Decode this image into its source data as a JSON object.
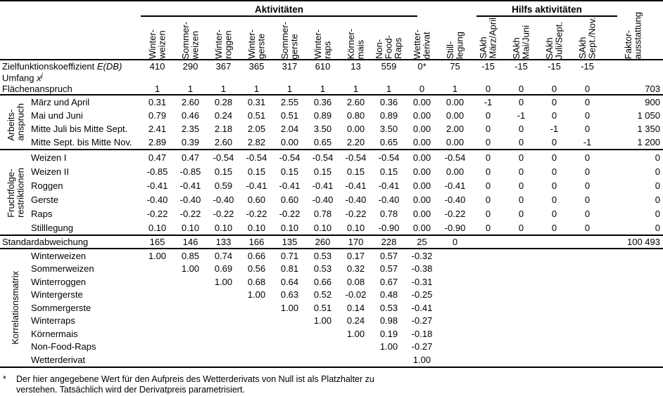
{
  "table": {
    "group_headers": {
      "activities": "Aktivitäten",
      "aux": "Hilfs aktivitäten"
    },
    "columns": [
      "Winter-\nweizen",
      "Sommer-\nweizen",
      "Winter-\nroggen",
      "Winter-\ngerste",
      "Sommer-\ngerste",
      "Winter-\nraps",
      "Körner-\nmais",
      "Non-Food-\nRaps",
      "Wetter-\nderivat",
      "Still-\nlegung",
      "SAkh\nMärz/April",
      "SAkh\nMai/Juni",
      "SAkh\nJuli/Sept.",
      "SAkh\nSept./Nov."
    ],
    "faktor_column": "Faktor-\nausstattung",
    "blocks": [
      {
        "group": "",
        "border_top": false,
        "border_bottom": false,
        "rows": [
          {
            "label": "Zielfunktionskoeffizient ",
            "label_italic": "E(DB)",
            "cells": [
              "410",
              "290",
              "367",
              "365",
              "317",
              "610",
              "13",
              "559",
              "0*",
              "75",
              "-15",
              "-15",
              "-15",
              "-15"
            ],
            "faktor": ""
          },
          {
            "label": "Umfang ",
            "label_italic": "x",
            "label_sup": "j",
            "cells": [
              "",
              "",
              "",
              "",
              "",
              "",
              "",
              "",
              "",
              "",
              "",
              "",
              "",
              ""
            ],
            "faktor": ""
          },
          {
            "label": "Flächenanspruch",
            "cells": [
              "1",
              "1",
              "1",
              "1",
              "1",
              "1",
              "1",
              "1",
              "0",
              "1",
              "0",
              "0",
              "0",
              "0"
            ],
            "faktor": "703"
          }
        ]
      },
      {
        "group": "Arbeits-\nanspruch",
        "border_top": true,
        "border_bottom": false,
        "rows": [
          {
            "label": "März und April",
            "cells": [
              "0.31",
              "2.60",
              "0.28",
              "0.31",
              "2.55",
              "0.36",
              "2.60",
              "0.36",
              "0.00",
              "0.00",
              "-1",
              "0",
              "0",
              "0"
            ],
            "faktor": "900"
          },
          {
            "label": "Mai und Juni",
            "cells": [
              "0.79",
              "0.46",
              "0.24",
              "0.51",
              "0.51",
              "0.89",
              "0.80",
              "0.89",
              "0.00",
              "0.00",
              "0",
              "-1",
              "0",
              "0"
            ],
            "faktor": "1 050"
          },
          {
            "label": "Mitte Juli bis Mitte Sept.",
            "cells": [
              "2.41",
              "2.35",
              "2.18",
              "2.05",
              "2.04",
              "3.50",
              "0.00",
              "3.50",
              "0.00",
              "2.00",
              "0",
              "0",
              "-1",
              "0"
            ],
            "faktor": "1 350"
          },
          {
            "label": "Mitte Sept. bis Mitte Nov.",
            "cells": [
              "2.89",
              "0.39",
              "2.60",
              "2.82",
              "0.00",
              "0.65",
              "2.20",
              "0.65",
              "0.00",
              "0.00",
              "0",
              "0",
              "0",
              "-1"
            ],
            "faktor": "1 200"
          }
        ]
      },
      {
        "group": "Fruchtfolge-\nrestriktionen",
        "border_top": true,
        "border_bottom": false,
        "rows": [
          {
            "label": "Weizen I",
            "cells": [
              "0.47",
              "0.47",
              "-0.54",
              "-0.54",
              "-0.54",
              "-0.54",
              "-0.54",
              "-0.54",
              "0.00",
              "-0.54",
              "0",
              "0",
              "0",
              "0"
            ],
            "faktor": "0"
          },
          {
            "label": "Weizen II",
            "cells": [
              "-0.85",
              "-0.85",
              "0.15",
              "0.15",
              "0.15",
              "0.15",
              "0.15",
              "0.15",
              "0.00",
              "0.00",
              "0",
              "0",
              "0",
              "0"
            ],
            "faktor": "0"
          },
          {
            "label": "Roggen",
            "cells": [
              "-0.41",
              "-0.41",
              "0.59",
              "-0.41",
              "-0.41",
              "-0.41",
              "-0.41",
              "-0.41",
              "0.00",
              "-0.41",
              "0",
              "0",
              "0",
              "0"
            ],
            "faktor": "0"
          },
          {
            "label": "Gerste",
            "cells": [
              "-0.40",
              "-0.40",
              "-0.40",
              "0.60",
              "0.60",
              "-0.40",
              "-0.40",
              "-0.40",
              "0.00",
              "-0.40",
              "0",
              "0",
              "0",
              "0"
            ],
            "faktor": "0"
          },
          {
            "label": "Raps",
            "cells": [
              "-0.22",
              "-0.22",
              "-0.22",
              "-0.22",
              "-0.22",
              "0.78",
              "-0.22",
              "0.78",
              "0.00",
              "-0.22",
              "0",
              "0",
              "0",
              "0"
            ],
            "faktor": "0"
          },
          {
            "label": "Stilllegung",
            "cells": [
              "0.10",
              "0.10",
              "0.10",
              "0.10",
              "0.10",
              "0.10",
              "0.10",
              "-0.90",
              "0.00",
              "-0.90",
              "0",
              "0",
              "0",
              "0"
            ],
            "faktor": "0"
          }
        ]
      },
      {
        "group": "",
        "border_top": true,
        "border_bottom": false,
        "rows": [
          {
            "label": "Standardabweichung",
            "cells": [
              "165",
              "146",
              "133",
              "166",
              "135",
              "260",
              "170",
              "228",
              "25",
              "0",
              "",
              "",
              "",
              ""
            ],
            "faktor": "100 493"
          }
        ]
      },
      {
        "group": "Korrelationsmatrix",
        "border_top": true,
        "border_bottom": true,
        "rows": [
          {
            "label": "Winterweizen",
            "cells": [
              "1.00",
              "0.85",
              "0.74",
              "0.66",
              "0.71",
              "0.53",
              "0.17",
              "0.57",
              "-0.32",
              "",
              "",
              "",
              "",
              ""
            ],
            "faktor": ""
          },
          {
            "label": "Sommerweizen",
            "cells": [
              "",
              "1.00",
              "0.69",
              "0.56",
              "0.81",
              "0.53",
              "0.32",
              "0.57",
              "-0.38",
              "",
              "",
              "",
              "",
              ""
            ],
            "faktor": ""
          },
          {
            "label": "Winterroggen",
            "cells": [
              "",
              "",
              "1.00",
              "0.68",
              "0.64",
              "0.66",
              "0.08",
              "0.67",
              "-0.31",
              "",
              "",
              "",
              "",
              ""
            ],
            "faktor": ""
          },
          {
            "label": "Wintergerste",
            "cells": [
              "",
              "",
              "",
              "1.00",
              "0.63",
              "0.52",
              "-0.02",
              "0.48",
              "-0.25",
              "",
              "",
              "",
              "",
              ""
            ],
            "faktor": ""
          },
          {
            "label": "Sommergerste",
            "cells": [
              "",
              "",
              "",
              "",
              "1.00",
              "0.51",
              "0.14",
              "0.53",
              "-0.41",
              "",
              "",
              "",
              "",
              ""
            ],
            "faktor": ""
          },
          {
            "label": "Winterraps",
            "cells": [
              "",
              "",
              "",
              "",
              "",
              "1.00",
              "0.24",
              "0.98",
              "-0.27",
              "",
              "",
              "",
              "",
              ""
            ],
            "faktor": ""
          },
          {
            "label": "Körnermais",
            "cells": [
              "",
              "",
              "",
              "",
              "",
              "",
              "1.00",
              "0.19",
              "-0.18",
              "",
              "",
              "",
              "",
              ""
            ],
            "faktor": ""
          },
          {
            "label": "Non-Food-Raps",
            "cells": [
              "",
              "",
              "",
              "",
              "",
              "",
              "",
              "1.00",
              "-0.27",
              "",
              "",
              "",
              "",
              ""
            ],
            "faktor": ""
          },
          {
            "label": "Wetterderivat",
            "cells": [
              "",
              "",
              "",
              "",
              "",
              "",
              "",
              "",
              "1.00",
              "",
              "",
              "",
              "",
              ""
            ],
            "faktor": ""
          }
        ]
      }
    ]
  },
  "footnote": {
    "marker": "*",
    "text": "Der hier angegebene Wert für den Aufpreis des Wetterderivats von Null ist als Platzhalter zu\nverstehen. Tatsächlich wird der Derivatpreis parametrisiert."
  }
}
